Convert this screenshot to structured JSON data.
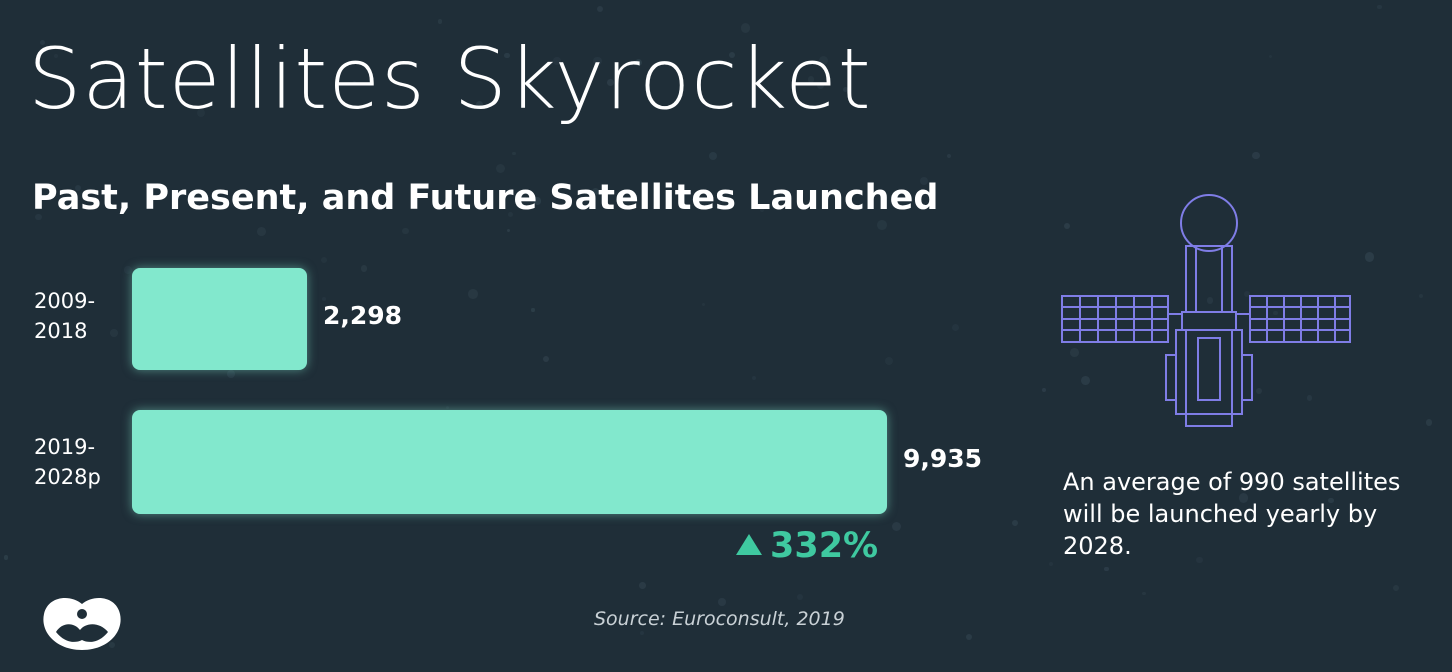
{
  "header": {
    "title": "Satellites Skyrocket",
    "subtitle": "Past, Present, and Future Satellites Launched"
  },
  "chart_data": {
    "type": "bar",
    "orientation": "horizontal",
    "categories": [
      "2009-\n2018",
      "2019-\n2028p"
    ],
    "values": [
      2298,
      9935
    ],
    "value_labels": [
      "2,298",
      "9,935"
    ],
    "bar_color": "#82e8cd"
  },
  "growth": {
    "label": "332%",
    "color": "#3fc9a0"
  },
  "note": "An average of 990 satellites will be launched yearly by 2028.",
  "source": "Source: Euroconsult, 2019",
  "icons": {
    "satellite": "satellite-icon",
    "logo": "brand-logo-icon"
  },
  "colors": {
    "background": "#1f2e38",
    "accent": "#82e8cd",
    "satellite_line": "#7f7de6"
  }
}
